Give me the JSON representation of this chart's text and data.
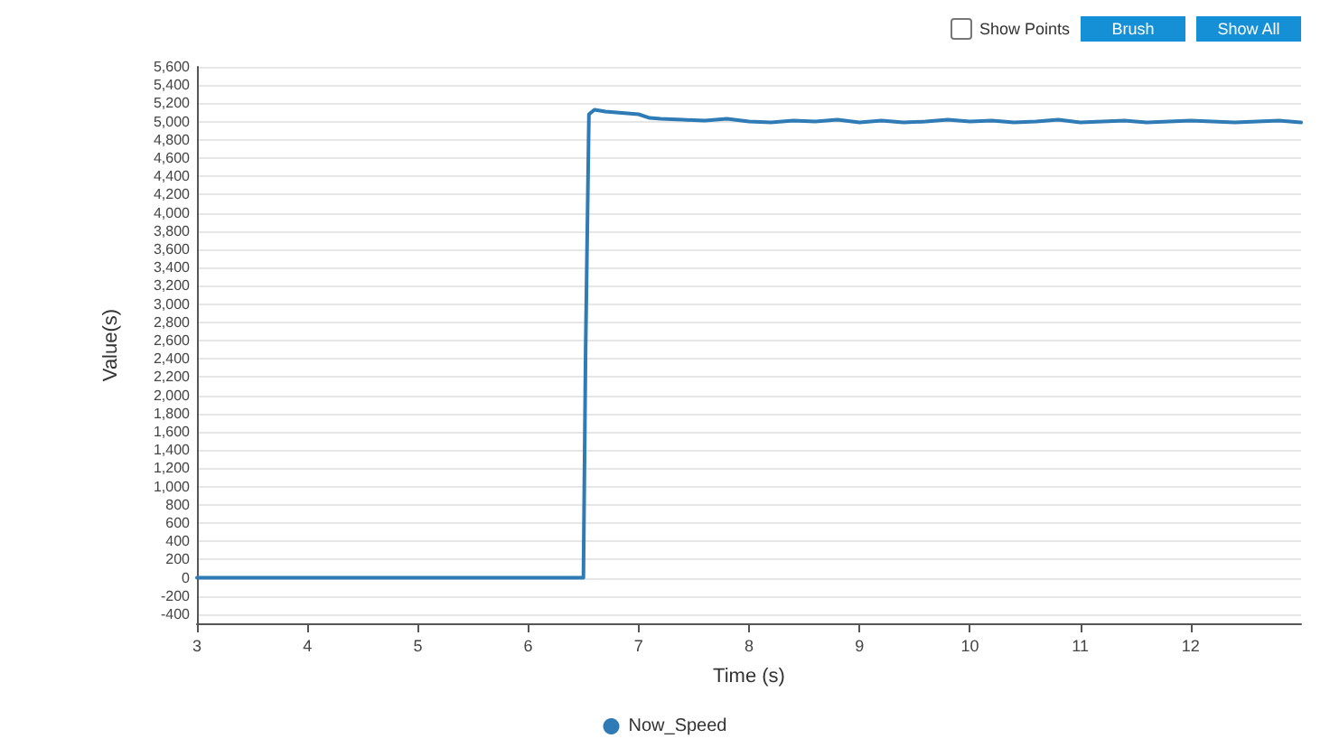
{
  "chart_data": {
    "type": "line",
    "xlabel": "Time (s)",
    "ylabel": "Value(s)",
    "annotations": [
      "Show Points",
      "Brush",
      "Show All"
    ],
    "x": [
      3,
      4,
      5,
      6,
      6.5,
      6.52,
      6.55,
      6.6,
      6.7,
      6.8,
      6.9,
      7.0,
      7.1,
      7.2,
      7.4,
      7.6,
      7.8,
      8.0,
      8.2,
      8.4,
      8.6,
      8.8,
      9.0,
      9.2,
      9.4,
      9.6,
      9.8,
      10.0,
      10.2,
      10.4,
      10.6,
      10.8,
      11.0,
      11.2,
      11.4,
      11.6,
      11.8,
      12.0,
      12.2,
      12.4,
      12.6,
      12.8,
      13.0
    ],
    "series": [
      {
        "name": "Now_Speed",
        "color": "#2f7bb5",
        "values": [
          0,
          0,
          0,
          0,
          0,
          2500,
          5080,
          5130,
          5110,
          5100,
          5090,
          5080,
          5040,
          5030,
          5020,
          5010,
          5030,
          5000,
          4990,
          5010,
          5000,
          5020,
          4990,
          5010,
          4990,
          5000,
          5020,
          5000,
          5010,
          4990,
          5000,
          5020,
          4990,
          5000,
          5010,
          4990,
          5000,
          5010,
          5000,
          4990,
          5000,
          5010,
          4990
        ]
      }
    ],
    "xlim": [
      3,
      13
    ],
    "xticks": [
      3,
      4,
      5,
      6,
      7,
      8,
      9,
      10,
      11,
      12
    ],
    "ylim": [
      -500,
      5600
    ],
    "yticks": [
      -400,
      -200,
      0,
      200,
      400,
      600,
      800,
      {
        "value": 1000,
        "label": "1,000"
      },
      {
        "value": 1200,
        "label": "1,200"
      },
      {
        "value": 1400,
        "label": "1,400"
      },
      {
        "value": 1600,
        "label": "1,600"
      },
      {
        "value": 1800,
        "label": "1,800"
      },
      {
        "value": 2000,
        "label": "2,000"
      },
      {
        "value": 2200,
        "label": "2,200"
      },
      {
        "value": 2400,
        "label": "2,400"
      },
      {
        "value": 2600,
        "label": "2,600"
      },
      {
        "value": 2800,
        "label": "2,800"
      },
      {
        "value": 3000,
        "label": "3,000"
      },
      {
        "value": 3200,
        "label": "3,200"
      },
      {
        "value": 3400,
        "label": "3,400"
      },
      {
        "value": 3600,
        "label": "3,600"
      },
      {
        "value": 3800,
        "label": "3,800"
      },
      {
        "value": 4000,
        "label": "4,000"
      },
      {
        "value": 4200,
        "label": "4,200"
      },
      {
        "value": 4400,
        "label": "4,400"
      },
      {
        "value": 4600,
        "label": "4,600"
      },
      {
        "value": 4800,
        "label": "4,800"
      },
      {
        "value": 5000,
        "label": "5,000"
      },
      {
        "value": 5200,
        "label": "5,200"
      },
      {
        "value": 5400,
        "label": "5,400"
      },
      {
        "value": 5600,
        "label": "5,600"
      }
    ],
    "grid": "y",
    "legend": "bottom",
    "marker": "none",
    "line_style": "solid"
  }
}
